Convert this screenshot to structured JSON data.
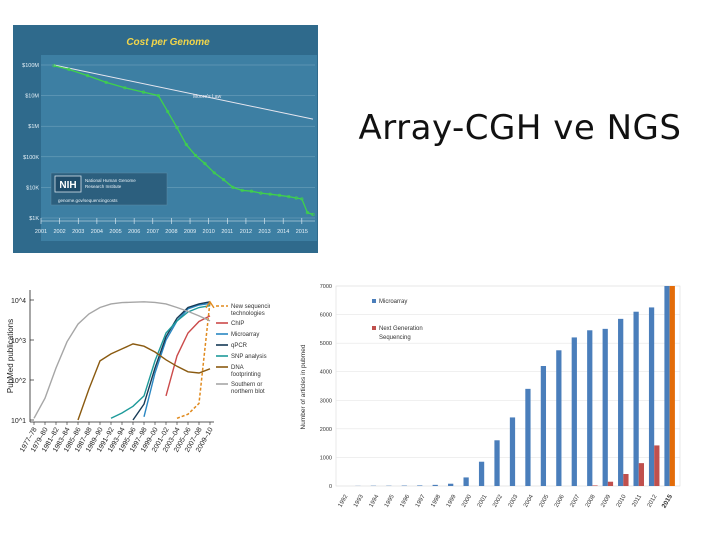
{
  "slide": {
    "title": "Array-CGH ve NGS"
  },
  "chart_data": [
    {
      "type": "line",
      "title": "Cost per Genome",
      "y_scale": "log",
      "y_ticks": [
        "$100M",
        "$10M",
        "$1M",
        "$100K",
        "$10K",
        "$1K"
      ],
      "y_tick_values": [
        100000000,
        10000000,
        1000000,
        100000,
        10000,
        1000
      ],
      "x_ticks": [
        "2001",
        "2002",
        "2003",
        "2004",
        "2005",
        "2006",
        "2007",
        "2008",
        "2009",
        "2010",
        "2011",
        "2012",
        "2013",
        "2014",
        "2015"
      ],
      "series": [
        {
          "name": "Moore's Law",
          "color": "#e6e6ef",
          "x": [
            2001.7,
            2015.6
          ],
          "y": [
            100000000,
            1700000
          ]
        },
        {
          "name": "",
          "color": "#3fd24a",
          "x": [
            2001.7,
            2002.5,
            2003.5,
            2004.5,
            2005.5,
            2006.5,
            2007.3,
            2007.8,
            2008.3,
            2008.8,
            2009.3,
            2009.8,
            2010.3,
            2010.8,
            2011.3,
            2011.8,
            2012.3,
            2012.8,
            2013.3,
            2013.8,
            2014.3,
            2014.7,
            2015.0,
            2015.3,
            2015.6
          ],
          "y": [
            95000000,
            72000000,
            45000000,
            27000000,
            18000000,
            13000000,
            10000000,
            3000000,
            900000,
            250000,
            110000,
            60000,
            30000,
            18000,
            10000,
            8000,
            7500,
            6500,
            6000,
            5500,
            5000,
            4500,
            4200,
            1500,
            1300
          ]
        }
      ],
      "logo": {
        "text": "NIH",
        "org": "National Human Genome Research Institute",
        "url": "genome.gov/sequencingcosts"
      },
      "colors": {
        "background": "#2f6a8c",
        "panel": "#3d7fa3",
        "grid": "#78a8c2",
        "text": "#e8f2f8",
        "title": "#f3d64a"
      }
    },
    {
      "type": "line",
      "y_scale": "log",
      "ylabel": "PubMed publications",
      "y_ticks": [
        "10^4",
        "10^3",
        "10^2",
        "10^1"
      ],
      "y_tick_values": [
        10000,
        1000,
        100,
        10
      ],
      "categories": [
        "1977–78",
        "1979–80",
        "1981–82",
        "1983–84",
        "1985–86",
        "1987–88",
        "1989–90",
        "1991–92",
        "1993–94",
        "1995–96",
        "1997–98",
        "1999–00",
        "2001–02",
        "2003–04",
        "2005–06",
        "2007–08",
        "2009–10"
      ],
      "series": [
        {
          "name": "New sequencing technologies",
          "color": "#e08a1e",
          "dashed_from_index": 14,
          "values": [
            null,
            null,
            null,
            null,
            null,
            null,
            null,
            null,
            null,
            null,
            null,
            null,
            null,
            11,
            14,
            26,
            9000
          ]
        },
        {
          "name": "ChIP",
          "color": "#cb4a4a",
          "values": [
            null,
            null,
            null,
            null,
            null,
            null,
            null,
            null,
            null,
            null,
            null,
            null,
            40,
            400,
            1500,
            2900,
            4000
          ]
        },
        {
          "name": "Microarray",
          "color": "#2a87c2",
          "values": [
            null,
            null,
            null,
            null,
            null,
            null,
            null,
            null,
            null,
            null,
            12,
            150,
            1000,
            3000,
            6000,
            7500,
            8200
          ]
        },
        {
          "name": "qPCR",
          "color": "#163a56",
          "values": [
            null,
            null,
            null,
            null,
            null,
            null,
            null,
            null,
            null,
            10,
            25,
            200,
            1200,
            3500,
            6500,
            8000,
            9000
          ]
        },
        {
          "name": "SNP analysis",
          "color": "#1e9a9a",
          "values": [
            null,
            null,
            null,
            null,
            null,
            null,
            null,
            11,
            15,
            22,
            40,
            300,
            1500,
            3000,
            5000,
            6500,
            7200
          ]
        },
        {
          "name": "DNA footprinting",
          "color": "#8a5a10",
          "values": [
            null,
            null,
            null,
            null,
            10,
            60,
            300,
            450,
            600,
            800,
            700,
            500,
            320,
            220,
            160,
            150,
            190
          ]
        },
        {
          "name": "Southern or northern blot",
          "color": "#a6a6a6",
          "values": [
            11,
            35,
            200,
            900,
            2500,
            4500,
            6500,
            8000,
            8600,
            8800,
            9000,
            8700,
            8000,
            6500,
            5200,
            4000,
            3000
          ]
        }
      ]
    },
    {
      "type": "bar",
      "ylabel": "Number of articles in pubmed",
      "ylim": [
        0,
        7000
      ],
      "y_ticks": [
        0,
        1000,
        2000,
        3000,
        4000,
        5000,
        6000,
        7000
      ],
      "categories": [
        "1992",
        "1993",
        "1994",
        "1995",
        "1996",
        "1997",
        "1998",
        "1999",
        "2000",
        "2001",
        "2002",
        "2003",
        "2004",
        "2005",
        "2006",
        "2007",
        "2008",
        "2009",
        "2010",
        "2011",
        "2012",
        "2015"
      ],
      "series": [
        {
          "name": "Microarray",
          "color": "#4a7ebb",
          "values": [
            0,
            5,
            10,
            10,
            15,
            20,
            40,
            80,
            300,
            850,
            1600,
            2400,
            3400,
            4200,
            4750,
            5200,
            5450,
            5500,
            5850,
            6100,
            6250,
            7100
          ]
        },
        {
          "name": "Next Generation Sequencing",
          "color": "#c0504d",
          "values": [
            0,
            0,
            0,
            0,
            0,
            0,
            0,
            0,
            0,
            0,
            0,
            0,
            0,
            0,
            0,
            0,
            20,
            150,
            420,
            800,
            1420,
            7100
          ]
        }
      ],
      "extra_bar_2015_color": "#e36c09",
      "legend": "top-left"
    }
  ]
}
